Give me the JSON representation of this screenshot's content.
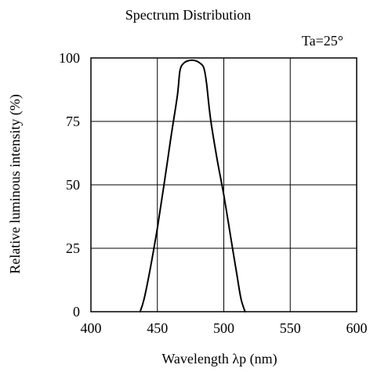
{
  "chart_data": {
    "type": "line",
    "title": "Spectrum Distribution",
    "annotation": "Ta=25°",
    "xlabel": "Wavelength λp (nm)",
    "ylabel": "Relative luminous intensity (%)",
    "xlim": [
      400,
      600
    ],
    "ylim": [
      0,
      100
    ],
    "xticks": [
      400,
      450,
      500,
      550,
      600
    ],
    "yticks": [
      0,
      25,
      50,
      75,
      100
    ],
    "xtick_labels": [
      "400",
      "450",
      "500",
      "550",
      "600"
    ],
    "ytick_labels": [
      "0",
      "25",
      "50",
      "75",
      "100"
    ],
    "grid": true,
    "legend": "none",
    "line_color": "#000000",
    "series": [
      {
        "x": [
          437,
          440,
          445,
          450,
          455,
          460,
          465,
          467,
          470,
          474,
          478,
          482,
          485,
          487,
          490,
          495,
          500,
          505,
          510,
          513,
          516
        ],
        "y": [
          0,
          5,
          18,
          33,
          50,
          68,
          85,
          95,
          98,
          99,
          99,
          98,
          96,
          90,
          76,
          60,
          46,
          30,
          14,
          5,
          0
        ]
      }
    ]
  }
}
